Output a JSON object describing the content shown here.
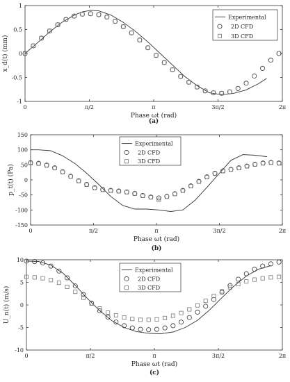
{
  "chart_data": [
    {
      "type": "line",
      "caption": "(a)",
      "xlabel": "Phase ωt (rad)",
      "ylabel": "x_d(t) (mm)",
      "xlim": [
        0,
        6.2832
      ],
      "ylim": [
        -1,
        1
      ],
      "x_ticks": [
        {
          "v": 0,
          "label": "0"
        },
        {
          "v": 1.5708,
          "label": "π/2"
        },
        {
          "v": 3.1416,
          "label": "π"
        },
        {
          "v": 4.7124,
          "label": "3π/2"
        },
        {
          "v": 6.2832,
          "label": "2π"
        }
      ],
      "y_ticks": [
        {
          "v": -1,
          "label": "-1"
        },
        {
          "v": -0.5,
          "label": "-0.5"
        },
        {
          "v": 0,
          "label": "0"
        },
        {
          "v": 0.5,
          "label": "0.5"
        },
        {
          "v": 1,
          "label": "1"
        }
      ],
      "legend_position": "top-right",
      "series": [
        {
          "name": "Experimental",
          "marker": "line",
          "x": [
            0,
            0.3,
            0.6,
            0.9,
            1.2,
            1.4,
            1.6,
            1.8,
            2.1,
            2.4,
            2.7,
            3.0,
            3.3,
            3.6,
            3.9,
            4.2,
            4.5,
            4.8,
            5.1,
            5.4,
            5.7,
            5.9
          ],
          "y": [
            0.0,
            0.22,
            0.45,
            0.65,
            0.8,
            0.87,
            0.9,
            0.89,
            0.8,
            0.65,
            0.46,
            0.24,
            0.0,
            -0.24,
            -0.48,
            -0.67,
            -0.82,
            -0.86,
            -0.83,
            -0.76,
            -0.63,
            -0.52
          ]
        },
        {
          "name": "2D CFD",
          "marker": "circle",
          "x": [
            0,
            0.2,
            0.4,
            0.6,
            0.8,
            1.0,
            1.2,
            1.4,
            1.6,
            1.8,
            2.0,
            2.2,
            2.4,
            2.6,
            2.8,
            3.0,
            3.2,
            3.4,
            3.6,
            3.8,
            4.0,
            4.2,
            4.4,
            4.6,
            4.8,
            5.0,
            5.2,
            5.4,
            5.6,
            5.8,
            6.0,
            6.2
          ],
          "y": [
            0.0,
            0.16,
            0.32,
            0.47,
            0.6,
            0.71,
            0.78,
            0.82,
            0.83,
            0.81,
            0.76,
            0.67,
            0.56,
            0.43,
            0.28,
            0.12,
            -0.04,
            -0.19,
            -0.34,
            -0.48,
            -0.6,
            -0.7,
            -0.78,
            -0.82,
            -0.83,
            -0.8,
            -0.73,
            -0.62,
            -0.47,
            -0.31,
            -0.14,
            0.0
          ]
        },
        {
          "name": "3D CFD",
          "marker": "square",
          "x": [
            0,
            0.2,
            0.4,
            0.6,
            0.8,
            1.0,
            1.2,
            1.4,
            1.6,
            1.8,
            2.0,
            2.2,
            2.4,
            2.6,
            2.8,
            3.0,
            3.2,
            3.4,
            3.6,
            3.8,
            4.0,
            4.2,
            4.4,
            4.6,
            4.8,
            5.0
          ],
          "y": [
            0.0,
            0.16,
            0.32,
            0.47,
            0.6,
            0.71,
            0.78,
            0.82,
            0.83,
            0.81,
            0.76,
            0.67,
            0.56,
            0.43,
            0.28,
            0.12,
            -0.04,
            -0.19,
            -0.34,
            -0.48,
            -0.6,
            -0.7,
            -0.78,
            -0.82,
            -0.83,
            -0.8
          ]
        }
      ]
    },
    {
      "type": "line",
      "caption": "(b)",
      "xlabel": "Phase ωt (rad)",
      "ylabel": "p_t(t) (Pa)",
      "xlim": [
        0,
        6.2832
      ],
      "ylim": [
        -150,
        150
      ],
      "x_ticks": [
        {
          "v": 0,
          "label": "0"
        },
        {
          "v": 1.5708,
          "label": "π/2"
        },
        {
          "v": 3.1416,
          "label": "π"
        },
        {
          "v": 4.7124,
          "label": "3π/2"
        },
        {
          "v": 6.2832,
          "label": "2π"
        }
      ],
      "y_ticks": [
        {
          "v": -150,
          "label": "-150"
        },
        {
          "v": -100,
          "label": "-100"
        },
        {
          "v": -50,
          "label": "-50"
        },
        {
          "v": 0,
          "label": "0"
        },
        {
          "v": 50,
          "label": "50"
        },
        {
          "v": 100,
          "label": "100"
        },
        {
          "v": 150,
          "label": "150"
        }
      ],
      "legend_position": "top-center",
      "series": [
        {
          "name": "Experimental",
          "marker": "line",
          "x": [
            0,
            0.2,
            0.5,
            0.8,
            1.1,
            1.4,
            1.7,
            2.0,
            2.3,
            2.6,
            2.9,
            3.2,
            3.5,
            3.8,
            4.1,
            4.4,
            4.7,
            5.0,
            5.3,
            5.6,
            5.9
          ],
          "y": [
            100,
            100,
            97,
            80,
            55,
            22,
            -15,
            -55,
            -85,
            -97,
            -97,
            -100,
            -105,
            -100,
            -68,
            -25,
            20,
            65,
            84,
            82,
            77
          ]
        },
        {
          "name": "2D CFD",
          "marker": "circle",
          "x": [
            0,
            0.2,
            0.4,
            0.6,
            0.8,
            1.0,
            1.2,
            1.4,
            1.6,
            1.8,
            2.0,
            2.2,
            2.4,
            2.6,
            2.8,
            3.0,
            3.2,
            3.4,
            3.6,
            3.8,
            4.0,
            4.2,
            4.4,
            4.6,
            4.8,
            5.0,
            5.2,
            5.4,
            5.6,
            5.8,
            6.0,
            6.2
          ],
          "y": [
            57,
            55,
            49,
            40,
            27,
            12,
            -3,
            -15,
            -26,
            -32,
            -35,
            -37,
            -40,
            -45,
            -52,
            -57,
            -60,
            -55,
            -46,
            -35,
            -20,
            -5,
            10,
            22,
            30,
            35,
            40,
            46,
            52,
            56,
            58,
            56
          ]
        },
        {
          "name": "3D CFD",
          "marker": "square",
          "x": [
            0,
            0.2,
            0.4,
            0.6,
            0.8,
            1.0,
            1.2,
            1.4,
            1.6,
            1.8,
            2.0,
            2.2,
            2.4,
            2.6,
            2.8,
            3.0,
            3.2,
            3.4,
            3.6,
            3.8,
            4.0,
            4.2,
            4.4,
            4.6,
            4.8,
            5.0,
            5.2,
            5.4,
            5.6,
            5.8,
            6.0,
            6.2
          ],
          "y": [
            56,
            54,
            48,
            39,
            26,
            11,
            -4,
            -16,
            -27,
            -33,
            -36,
            -38,
            -41,
            -46,
            -53,
            -58,
            -66,
            -56,
            -47,
            -36,
            -21,
            -6,
            9,
            21,
            29,
            34,
            39,
            45,
            51,
            55,
            57,
            55
          ]
        }
      ]
    },
    {
      "type": "line",
      "caption": "(c)",
      "xlabel": "Phase ωt (rad)",
      "ylabel": "U_n(t) (m/s)",
      "xlim": [
        0,
        6.2832
      ],
      "ylim": [
        -10,
        10
      ],
      "x_ticks": [
        {
          "v": 0,
          "label": "0"
        },
        {
          "v": 1.5708,
          "label": "π/2"
        },
        {
          "v": 3.1416,
          "label": "π"
        },
        {
          "v": 4.7124,
          "label": "3π/2"
        },
        {
          "v": 6.2832,
          "label": "2π"
        }
      ],
      "y_ticks": [
        {
          "v": -10,
          "label": "-10"
        },
        {
          "v": -5,
          "label": "-5"
        },
        {
          "v": 0,
          "label": "0"
        },
        {
          "v": 5,
          "label": "5"
        },
        {
          "v": 10,
          "label": "10"
        }
      ],
      "legend_position": "top-center",
      "series": [
        {
          "name": "Experimental",
          "marker": "line",
          "x": [
            0,
            0.3,
            0.6,
            0.9,
            1.2,
            1.5,
            1.8,
            2.1,
            2.4,
            2.7,
            3.0,
            3.3,
            3.6,
            3.9,
            4.2,
            4.5,
            4.8,
            5.1,
            5.4,
            5.7,
            6.0
          ],
          "y": [
            9.7,
            9.6,
            8.8,
            7.0,
            4.3,
            1.4,
            -1.3,
            -3.5,
            -5.0,
            -5.9,
            -6.3,
            -6.4,
            -6.0,
            -5.0,
            -3.4,
            -1.1,
            1.6,
            4.2,
            6.4,
            7.9,
            8.7
          ]
        },
        {
          "name": "2D CFD",
          "marker": "circle",
          "x": [
            0,
            0.2,
            0.4,
            0.6,
            0.8,
            1.0,
            1.2,
            1.4,
            1.6,
            1.8,
            2.0,
            2.2,
            2.4,
            2.6,
            2.8,
            3.0,
            3.2,
            3.4,
            3.6,
            3.8,
            4.0,
            4.2,
            4.4,
            4.6,
            4.8,
            5.0,
            5.2,
            5.4,
            5.6,
            5.8,
            6.0,
            6.2
          ],
          "y": [
            9.7,
            9.6,
            9.3,
            8.6,
            7.5,
            6.0,
            4.2,
            2.3,
            0.4,
            -1.3,
            -2.7,
            -3.8,
            -4.6,
            -5.1,
            -5.4,
            -5.5,
            -5.4,
            -5.1,
            -4.6,
            -3.8,
            -2.8,
            -1.6,
            -0.3,
            1.2,
            2.8,
            4.3,
            5.7,
            6.9,
            7.9,
            8.6,
            9.1,
            9.5
          ]
        },
        {
          "name": "3D CFD",
          "marker": "square",
          "x": [
            0,
            0.2,
            0.4,
            0.6,
            0.8,
            1.0,
            1.2,
            1.4,
            1.6,
            1.8,
            2.0,
            2.2,
            2.4,
            2.6,
            2.8,
            3.0,
            3.2,
            3.4,
            3.6,
            3.8,
            4.0,
            4.2,
            4.4,
            4.6,
            4.8,
            5.0,
            5.2,
            5.4,
            5.6,
            5.8,
            6.0,
            6.2
          ],
          "y": [
            6.2,
            6.1,
            5.9,
            5.5,
            4.9,
            4.0,
            2.9,
            1.6,
            0.3,
            -0.8,
            -1.7,
            -2.3,
            -2.8,
            -3.1,
            -3.3,
            -3.3,
            -3.2,
            -2.9,
            -2.4,
            -1.8,
            -1.0,
            -0.1,
            0.9,
            2.0,
            3.0,
            3.9,
            4.6,
            5.2,
            5.6,
            5.9,
            6.1,
            6.2
          ]
        }
      ]
    }
  ]
}
